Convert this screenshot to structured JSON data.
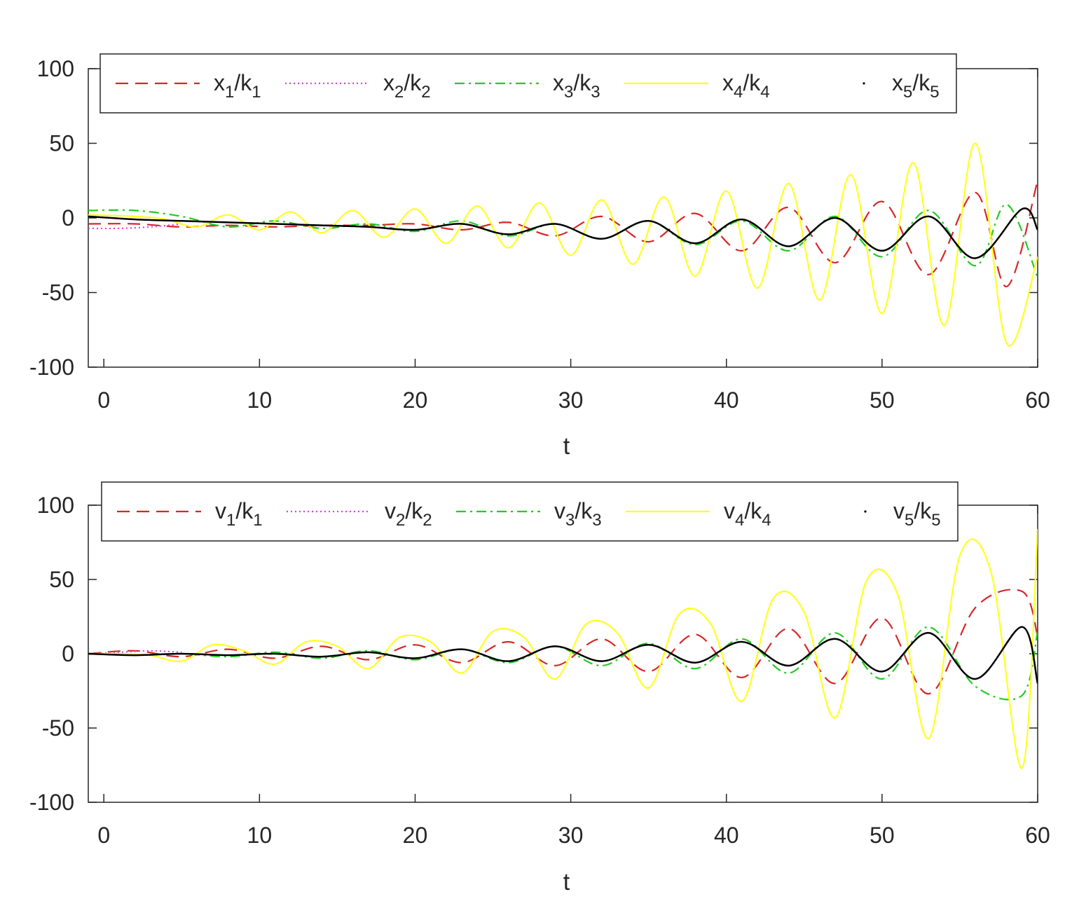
{
  "chart_data": [
    {
      "type": "line",
      "xlabel": "t",
      "ylabel": "",
      "xlim": [
        -1,
        60
      ],
      "ylim": [
        -100,
        100
      ],
      "x_ticks": [
        0,
        10,
        20,
        30,
        40,
        50,
        60
      ],
      "y_ticks": [
        -100,
        -50,
        0,
        50,
        100
      ],
      "legend_position": "top",
      "series": [
        {
          "name": "x1/k1",
          "base": "x",
          "sub1": "1",
          "sub2": "1",
          "color": "#d62728",
          "dash": "dashed",
          "x": [
            -1,
            2,
            5,
            8,
            11,
            14,
            17,
            20,
            23,
            26,
            29,
            32,
            35,
            38,
            41,
            44,
            47,
            50,
            53,
            56,
            58,
            60
          ],
          "y": [
            -4,
            -4,
            -6,
            -5,
            -6,
            -5,
            -5,
            -4,
            -8,
            -3,
            -12,
            1,
            -16,
            3,
            -22,
            7,
            -30,
            11,
            -38,
            17,
            -46,
            25
          ]
        },
        {
          "name": "x2/k2",
          "base": "x",
          "sub1": "2",
          "sub2": "2",
          "color": "#e040e0",
          "dash": "dotted",
          "x": [
            -1,
            1,
            3,
            5
          ],
          "y": [
            -7,
            -7,
            -6,
            -4
          ]
        },
        {
          "name": "x3/k3",
          "base": "x",
          "sub1": "3",
          "sub2": "3",
          "color": "#22cc22",
          "dash": "dashdot",
          "x": [
            -1,
            2,
            5,
            8,
            11,
            14,
            17,
            20,
            23,
            26,
            29,
            32,
            35,
            38,
            41,
            44,
            47,
            50,
            53,
            56,
            58,
            60
          ],
          "y": [
            5,
            5,
            1,
            -6,
            -2,
            -7,
            -4,
            -9,
            -2,
            -12,
            -4,
            -14,
            -2,
            -18,
            -2,
            -22,
            1,
            -26,
            5,
            -32,
            9,
            -40
          ]
        },
        {
          "name": "x4/k4",
          "base": "x",
          "sub1": "4",
          "sub2": "4",
          "color": "#ffff22",
          "dash": "solid",
          "x": [
            -1,
            2,
            4,
            6,
            8,
            10,
            12,
            14,
            16,
            18,
            20,
            22,
            24,
            26,
            28,
            30,
            32,
            34,
            36,
            38,
            40,
            42,
            44,
            46,
            48,
            50,
            52,
            54,
            56,
            58,
            60
          ],
          "y": [
            2,
            1,
            -1,
            -6,
            2,
            -8,
            4,
            -10,
            5,
            -13,
            6,
            -17,
            8,
            -20,
            10,
            -25,
            12,
            -31,
            14,
            -39,
            18,
            -47,
            23,
            -55,
            29,
            -64,
            37,
            -72,
            50,
            -84,
            -26
          ]
        },
        {
          "name": "x5/k5",
          "base": "x",
          "sub1": "5",
          "sub2": "5",
          "color": "#000000",
          "dash": "solid",
          "x": [
            -1,
            2,
            5,
            8,
            11,
            14,
            17,
            20,
            23,
            26,
            29,
            32,
            35,
            38,
            41,
            44,
            47,
            50,
            53,
            56,
            59,
            60
          ],
          "y": [
            1,
            -1,
            -2,
            -3,
            -4,
            -5,
            -6,
            -8,
            -4,
            -11,
            -4,
            -14,
            -2,
            -17,
            -1,
            -19,
            0,
            -22,
            1,
            -27,
            6,
            -8
          ]
        }
      ]
    },
    {
      "type": "line",
      "xlabel": "t",
      "ylabel": "",
      "xlim": [
        -1,
        60
      ],
      "ylim": [
        -100,
        100
      ],
      "x_ticks": [
        0,
        10,
        20,
        30,
        40,
        50,
        60
      ],
      "y_ticks": [
        -100,
        -50,
        0,
        50,
        100
      ],
      "legend_position": "top",
      "series": [
        {
          "name": "v1/k1",
          "base": "v",
          "sub1": "1",
          "sub2": "1",
          "color": "#d62728",
          "dash": "dashed",
          "x": [
            -1,
            2,
            5,
            8,
            11,
            14,
            17,
            20,
            23,
            26,
            29,
            32,
            35,
            38,
            41,
            44,
            47,
            50,
            53,
            56,
            59,
            60
          ],
          "y": [
            0,
            2,
            -2,
            3,
            -3,
            5,
            -4,
            6,
            -6,
            8,
            -8,
            10,
            -12,
            13,
            -16,
            17,
            -20,
            24,
            -27,
            31,
            42,
            12
          ]
        },
        {
          "name": "v2/k2",
          "base": "v",
          "sub1": "2",
          "sub2": "2",
          "color": "#e040e0",
          "dash": "dotted",
          "x": [
            -1,
            1,
            3,
            5
          ],
          "y": [
            0,
            1,
            2,
            1
          ]
        },
        {
          "name": "v3/k3",
          "base": "v",
          "sub1": "3",
          "sub2": "3",
          "color": "#22cc22",
          "dash": "dashdot",
          "x": [
            -1,
            2,
            5,
            8,
            11,
            14,
            17,
            20,
            23,
            26,
            29,
            32,
            35,
            38,
            41,
            44,
            47,
            50,
            53,
            56,
            59,
            60
          ],
          "y": [
            0,
            -1,
            0,
            -2,
            1,
            -3,
            2,
            -4,
            3,
            -6,
            5,
            -8,
            7,
            -10,
            10,
            -13,
            14,
            -17,
            18,
            -22,
            -28,
            15
          ]
        },
        {
          "name": "v4/k4",
          "base": "v",
          "sub1": "4",
          "sub2": "4",
          "color": "#ffff22",
          "dash": "solid",
          "x": [
            -1,
            1,
            3,
            5,
            7,
            9,
            11,
            13,
            15,
            17,
            19,
            21,
            23,
            25,
            27,
            29,
            31,
            33,
            35,
            37,
            39,
            41,
            43,
            45,
            47,
            49,
            51,
            53,
            55,
            57,
            59,
            60
          ],
          "y": [
            0,
            0,
            -1,
            -5,
            6,
            2,
            -7,
            8,
            5,
            -10,
            11,
            8,
            -13,
            15,
            11,
            -17,
            20,
            14,
            -23,
            27,
            20,
            -32,
            37,
            28,
            -43,
            49,
            40,
            -57,
            66,
            55,
            -77,
            84
          ]
        },
        {
          "name": "v5/k5",
          "base": "v",
          "sub1": "5",
          "sub2": "5",
          "color": "#000000",
          "dash": "solid",
          "x": [
            -1,
            2,
            5,
            8,
            11,
            14,
            17,
            20,
            23,
            26,
            29,
            32,
            35,
            38,
            41,
            44,
            47,
            50,
            53,
            56,
            59,
            60
          ],
          "y": [
            0,
            -1,
            0,
            -1,
            0,
            -2,
            1,
            -3,
            3,
            -5,
            5,
            -5,
            6,
            -6,
            8,
            -8,
            10,
            -12,
            14,
            -17,
            18,
            -20
          ]
        }
      ]
    }
  ]
}
